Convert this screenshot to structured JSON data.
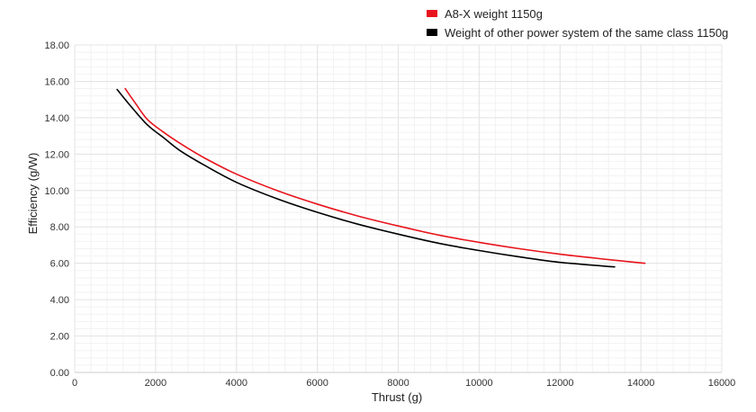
{
  "chart_data": {
    "type": "line",
    "title": "",
    "xlabel": "Thrust (g)",
    "ylabel": "Efficiency (g/W)",
    "xlim": [
      0,
      16000
    ],
    "ylim": [
      0,
      18
    ],
    "x_ticks": [
      "0",
      "2000",
      "4000",
      "6000",
      "8000",
      "10000",
      "12000",
      "14000",
      "16000"
    ],
    "y_ticks": [
      "0.00",
      "2.00",
      "4.00",
      "6.00",
      "8.00",
      "10.00",
      "12.00",
      "14.00",
      "16.00",
      "18.00"
    ],
    "grid": true,
    "legend_position": "top-right",
    "series": [
      {
        "name": "A8-X weight 1150g",
        "color": "#e8141c",
        "x": [
          1250,
          1500,
          1800,
          2200,
          2600,
          3200,
          4000,
          5000,
          6000,
          7000,
          8000,
          9000,
          10000,
          11000,
          12000,
          13000,
          14100
        ],
        "y": [
          15.6,
          14.8,
          13.9,
          13.2,
          12.6,
          11.8,
          10.9,
          10.0,
          9.25,
          8.6,
          8.05,
          7.55,
          7.15,
          6.8,
          6.5,
          6.25,
          6.0
        ]
      },
      {
        "name": "Weight of other power system of the same class 1150g",
        "color": "#000000",
        "x": [
          1050,
          1400,
          1800,
          2200,
          2600,
          3200,
          4000,
          5000,
          6000,
          7000,
          8000,
          9000,
          10000,
          11000,
          12000,
          13350
        ],
        "y": [
          15.55,
          14.6,
          13.6,
          12.9,
          12.2,
          11.4,
          10.45,
          9.55,
          8.8,
          8.15,
          7.6,
          7.1,
          6.7,
          6.35,
          6.05,
          5.8
        ]
      }
    ]
  }
}
